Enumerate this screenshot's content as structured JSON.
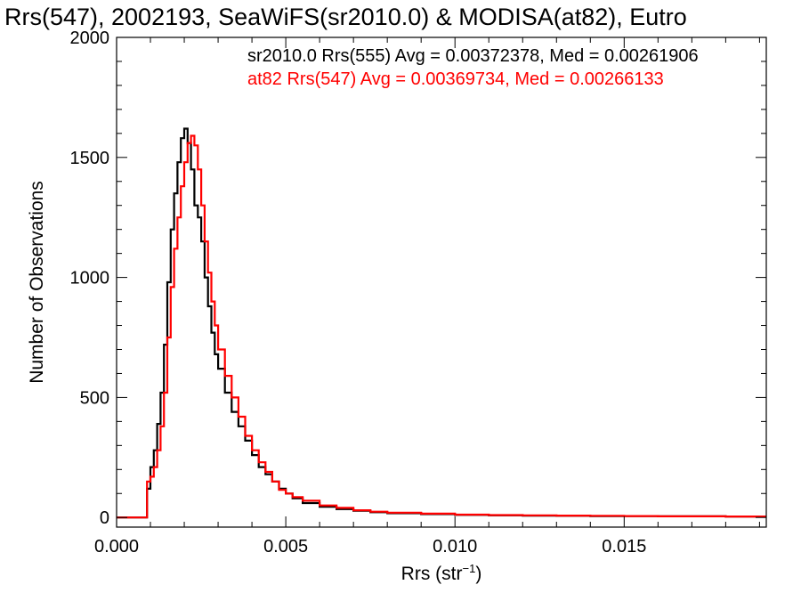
{
  "chart_data": {
    "type": "line",
    "title": "Rrs(547), 2002193, SeaWiFS(sr2010.0) & MODISA(at82), Eutro",
    "xlabel": "Rrs (str",
    "xlabel_sup": "−1",
    "xlabel_close": ")",
    "ylabel": "Number of Observations",
    "xlim": [
      0,
      0.0192
    ],
    "ylim": [
      -40,
      2000
    ],
    "x_ticks": [
      0.0,
      0.005,
      0.01,
      0.015
    ],
    "x_tick_labels": [
      "0.000",
      "0.005",
      "0.010",
      "0.015"
    ],
    "y_ticks": [
      0,
      500,
      1000,
      1500,
      2000
    ],
    "y_tick_labels": [
      "0",
      "500",
      "1000",
      "1500",
      "2000"
    ],
    "legend": [
      {
        "text": "sr2010.0 Rrs(555) Avg = 0.00372378, Med = 0.00261906",
        "color": "#000000"
      },
      {
        "text": "at82 Rrs(547) Avg = 0.00369734, Med = 0.00266133",
        "color": "#ff0000"
      }
    ],
    "series": [
      {
        "color": "#000000",
        "x": [
          0.0,
          0.0008,
          0.0009,
          0.001,
          0.0011,
          0.0012,
          0.0013,
          0.0014,
          0.0015,
          0.0016,
          0.0017,
          0.0018,
          0.0019,
          0.002,
          0.0021,
          0.0022,
          0.0023,
          0.0024,
          0.0025,
          0.0026,
          0.0027,
          0.0028,
          0.0029,
          0.003,
          0.0032,
          0.0034,
          0.0036,
          0.0038,
          0.004,
          0.0042,
          0.0044,
          0.0046,
          0.0048,
          0.005,
          0.0052,
          0.0055,
          0.006,
          0.0065,
          0.007,
          0.0075,
          0.008,
          0.009,
          0.01,
          0.011,
          0.012,
          0.013,
          0.014,
          0.015,
          0.016,
          0.017,
          0.018,
          0.0192
        ],
        "y": [
          0,
          0,
          120,
          210,
          280,
          390,
          520,
          720,
          980,
          1200,
          1350,
          1480,
          1580,
          1620,
          1560,
          1450,
          1300,
          1250,
          1150,
          1000,
          880,
          770,
          680,
          620,
          520,
          440,
          380,
          320,
          260,
          210,
          180,
          150,
          120,
          100,
          80,
          60,
          45,
          35,
          28,
          22,
          18,
          14,
          11,
          9,
          8,
          7,
          6,
          6,
          5,
          5,
          4,
          4
        ]
      },
      {
        "color": "#ff0000",
        "x": [
          0.0,
          0.0008,
          0.0009,
          0.001,
          0.0011,
          0.0012,
          0.0013,
          0.0014,
          0.0015,
          0.0016,
          0.0017,
          0.0018,
          0.0019,
          0.002,
          0.0021,
          0.0022,
          0.0023,
          0.0024,
          0.0025,
          0.0026,
          0.0027,
          0.0028,
          0.0029,
          0.003,
          0.0032,
          0.0034,
          0.0036,
          0.0038,
          0.004,
          0.0042,
          0.0044,
          0.0046,
          0.0048,
          0.005,
          0.0052,
          0.0055,
          0.006,
          0.0065,
          0.007,
          0.0075,
          0.008,
          0.009,
          0.01,
          0.011,
          0.012,
          0.013,
          0.014,
          0.015,
          0.016,
          0.017,
          0.018,
          0.0192
        ],
        "y": [
          0,
          0,
          150,
          170,
          210,
          280,
          380,
          520,
          750,
          960,
          1120,
          1250,
          1380,
          1480,
          1560,
          1590,
          1550,
          1450,
          1300,
          1150,
          1020,
          900,
          800,
          700,
          590,
          500,
          420,
          340,
          280,
          230,
          190,
          150,
          115,
          100,
          85,
          70,
          50,
          40,
          30,
          24,
          20,
          16,
          12,
          10,
          9,
          8,
          7,
          6,
          5,
          5,
          4,
          4
        ]
      }
    ]
  }
}
